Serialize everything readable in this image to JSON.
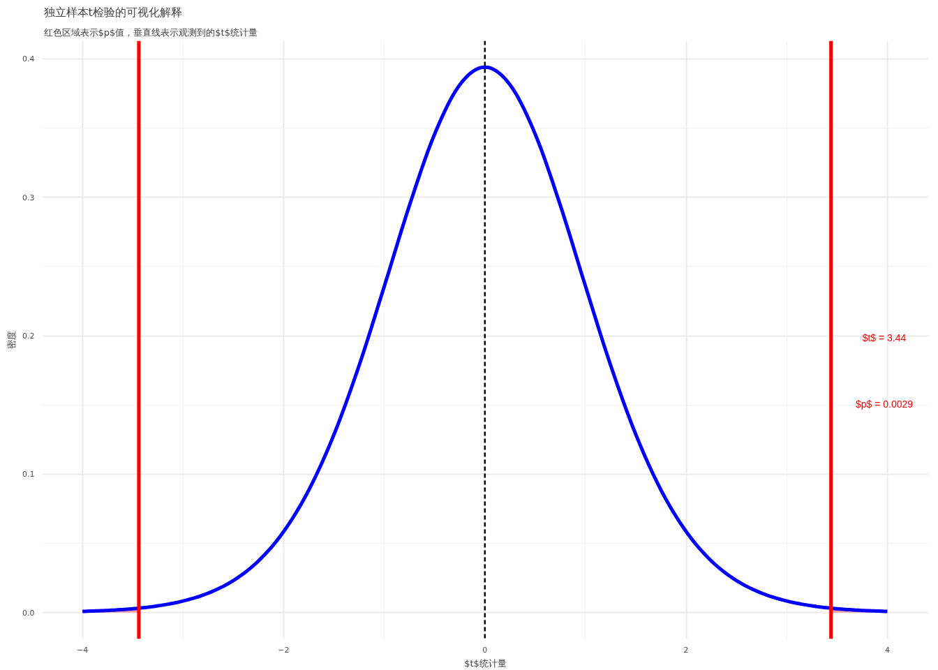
{
  "chart_data": {
    "type": "line",
    "title": "独立样本t检验的可视化解释",
    "subtitle": "红色区域表示$p$值，垂直线表示观测到的$t$统计量",
    "xlabel": "$t$统计量",
    "ylabel": "密度",
    "xlim": [
      -4.4,
      4.41
    ],
    "ylim": [
      -0.019,
      0.413
    ],
    "xticks": [
      -4,
      -2,
      0,
      2,
      4
    ],
    "yticks": [
      {
        "value": 0,
        "label": "0.0"
      },
      {
        "value": 0.1,
        "label": "0.1"
      },
      {
        "value": 0.2,
        "label": "0.2"
      },
      {
        "value": 0.3,
        "label": "0.3"
      },
      {
        "value": 0.4,
        "label": "0.4"
      }
    ],
    "grid": true,
    "line_style": "solid",
    "series": [
      {
        "type": "area",
        "color": "#f4a0a0",
        "x": [
          -4,
          -3.75,
          -3.5,
          -3.44
        ],
        "values": [
          0.0009,
          0.0016,
          0.0028,
          0.0032
        ]
      },
      {
        "type": "area",
        "color": "#f4a0a0",
        "x": [
          3.44,
          3.5,
          3.75,
          4
        ],
        "values": [
          0.0032,
          0.0028,
          0.0016,
          0.0009
        ]
      },
      {
        "color": "#0000ff",
        "x": [
          -4,
          -3.75,
          -3.5,
          -3.25,
          -3,
          -2.75,
          -2.5,
          -2.25,
          -2,
          -1.75,
          -1.5,
          -1.25,
          -1,
          -0.75,
          -0.5,
          -0.25,
          0,
          0.25,
          0.5,
          0.75,
          1,
          1.25,
          1.5,
          1.75,
          2,
          2.25,
          2.5,
          2.75,
          3,
          3.25,
          3.5,
          3.75,
          4
        ],
        "values": [
          0.0009,
          0.0016,
          0.0028,
          0.0049,
          0.0084,
          0.0141,
          0.0232,
          0.0374,
          0.0586,
          0.0886,
          0.1287,
          0.1786,
          0.2357,
          0.2941,
          0.3456,
          0.3812,
          0.394,
          0.3812,
          0.3456,
          0.2941,
          0.2357,
          0.1786,
          0.1287,
          0.0886,
          0.0586,
          0.0374,
          0.0232,
          0.0141,
          0.0084,
          0.0049,
          0.0028,
          0.0016,
          0.0009
        ]
      }
    ],
    "ref_lines": [
      {
        "axis": "x",
        "value": -3.44,
        "color": "#ff0000",
        "line_style": "solid"
      },
      {
        "axis": "x",
        "value": 3.44,
        "color": "#ff0000",
        "line_style": "solid"
      },
      {
        "axis": "x",
        "value": 0,
        "color": "#000000",
        "line_style": "dashed"
      }
    ],
    "annotations": [
      "$t$ = 3.44",
      "$p$ = 0.0029"
    ]
  }
}
